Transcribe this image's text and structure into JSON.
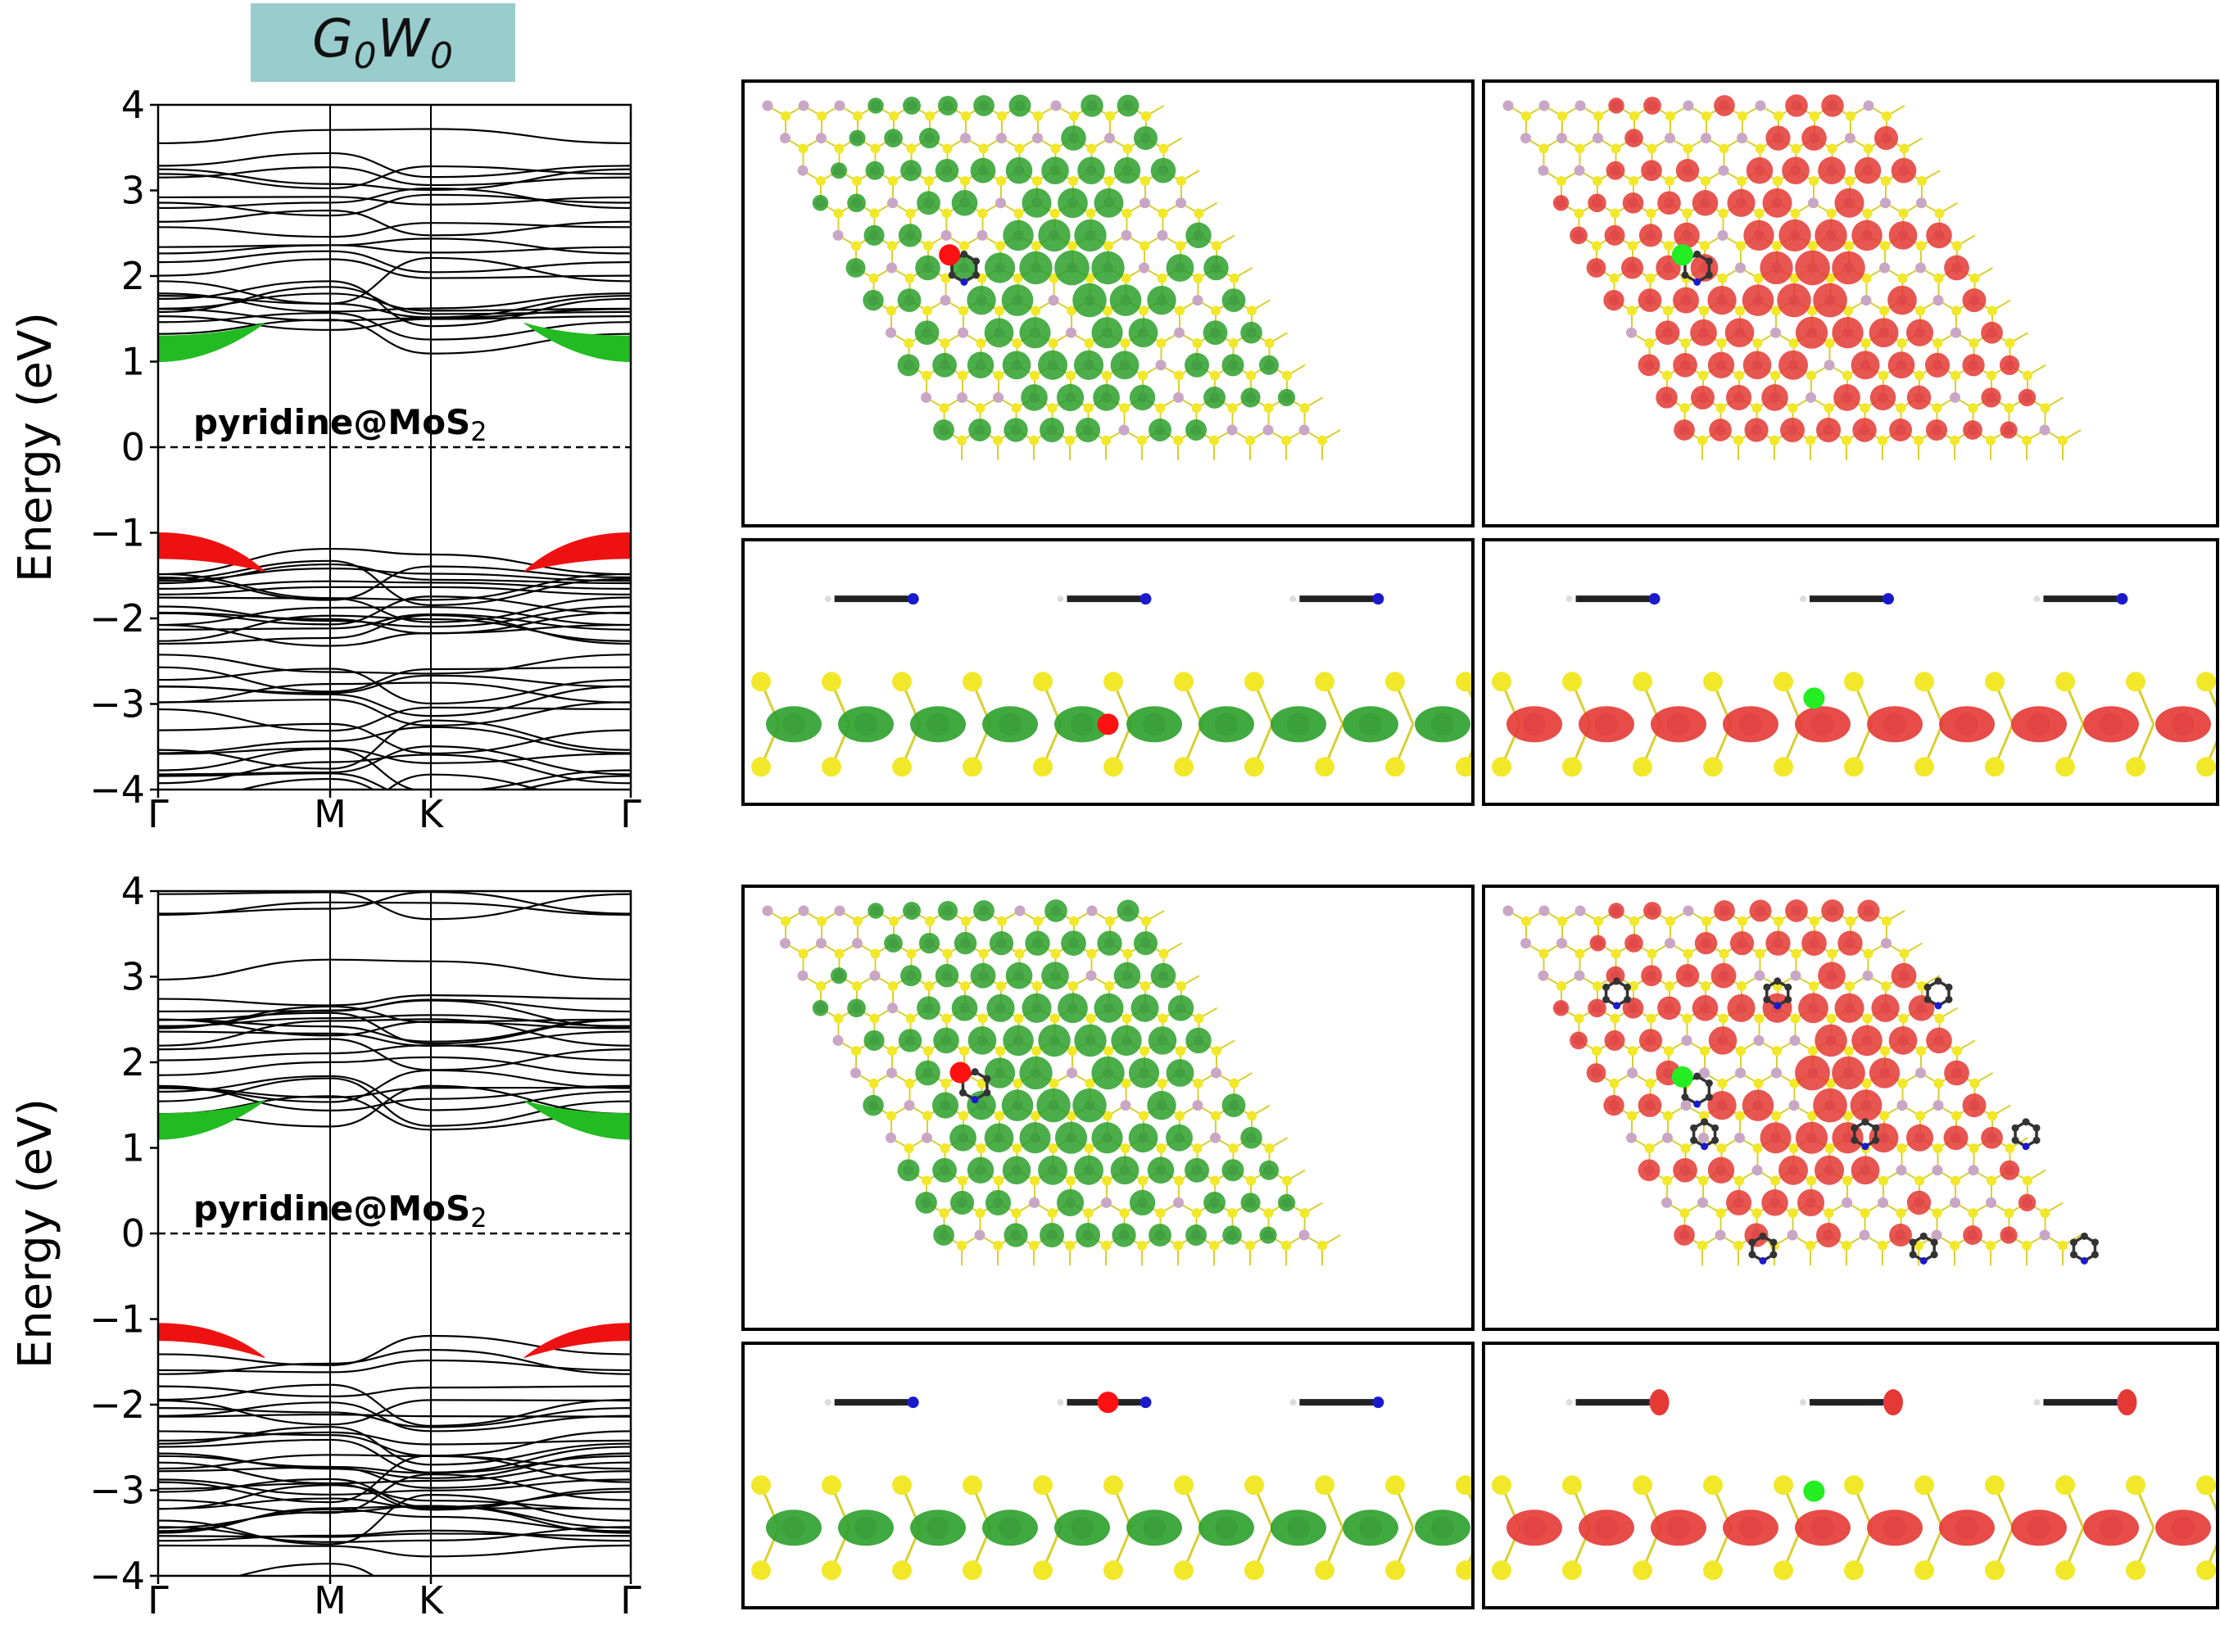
{
  "figure_title": "G0W0",
  "colors": {
    "title_bg": "#99cccc",
    "lumo_band": "#22bb22",
    "homo_band": "#ee1111",
    "orbital_green": "#2ca02c",
    "orbital_red": "#e53935",
    "mo_atom": "#c9a6c6",
    "s_atom": "#f2e82a",
    "n_atom": "#1a1acc",
    "c_atom": "#333333",
    "marker_red": "#ff1111",
    "marker_green": "#22ee22"
  },
  "band_plots": [
    {
      "label_main": "pyridine@MoS",
      "label_sub": "2",
      "ylabel": "Energy (eV)",
      "yticks": [
        "4",
        "3",
        "2",
        "1",
        "0",
        "−1",
        "−2",
        "−3",
        "−4"
      ],
      "xticks": [
        "Γ",
        "M",
        "K",
        "Γ"
      ]
    },
    {
      "label_main": "pyridine@MoS",
      "label_sub": "2",
      "ylabel": "Energy (eV)",
      "yticks": [
        "4",
        "3",
        "2",
        "1",
        "0",
        "−1",
        "−2",
        "−3",
        "−4"
      ],
      "xticks": [
        "Γ",
        "M",
        "K",
        "Γ"
      ]
    }
  ],
  "chart_data": [
    {
      "type": "line",
      "x": [
        "Γ",
        "M",
        "K",
        "Γ"
      ],
      "ylabel": "Energy (eV)",
      "ylim": [
        -4,
        4
      ],
      "fermi_level": 0,
      "highlighted": [
        {
          "color": "green",
          "location": "Γ",
          "energy_range": [
            1.0,
            1.3
          ]
        },
        {
          "color": "red",
          "location": "Γ",
          "energy_range": [
            -1.3,
            -1.0
          ]
        }
      ]
    },
    {
      "type": "line",
      "x": [
        "Γ",
        "M",
        "K",
        "Γ"
      ],
      "ylabel": "Energy (eV)",
      "ylim": [
        -4,
        4
      ],
      "fermi_level": 0,
      "highlighted": [
        {
          "color": "green",
          "location": "Γ",
          "energy_range": [
            1.1,
            1.4
          ]
        },
        {
          "color": "red",
          "location": "Γ",
          "energy_range": [
            -1.25,
            -1.05
          ]
        }
      ]
    }
  ]
}
